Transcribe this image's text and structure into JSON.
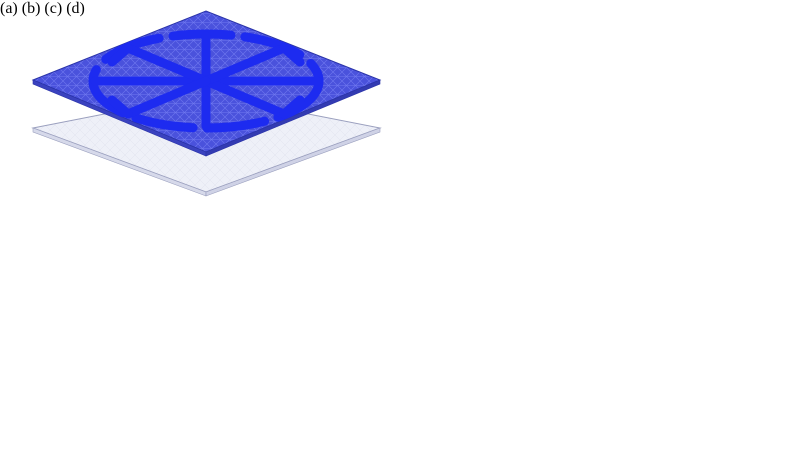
{
  "panels": [
    {
      "label": "(a)",
      "conductor_layer": "top",
      "mesh_color": "#3b45e0",
      "pattern_color": "#1d2bf0",
      "pattern": "spoked-ring"
    },
    {
      "label": "(b)",
      "conductor_layer": "top",
      "mesh_color": "#c9c24a",
      "pattern_color": "#c0531e",
      "pattern": "spoked-ring"
    },
    {
      "label": "(c)",
      "conductor_layer": "bottom",
      "mesh_color": "#4a52d6",
      "pattern_color": "#1d2bf0",
      "pattern": "center-feed"
    },
    {
      "label": "(d)",
      "conductor_layer": "bottom",
      "mesh_color": "#c9c24a",
      "pattern_color": "#c0531e",
      "pattern": "center-feed"
    }
  ],
  "colors": {
    "glass_fill": "#eceef7",
    "glass_edge": "#9a9fbe",
    "blue_edge": "#2a33a8",
    "yellow_edge": "#b8682a"
  }
}
